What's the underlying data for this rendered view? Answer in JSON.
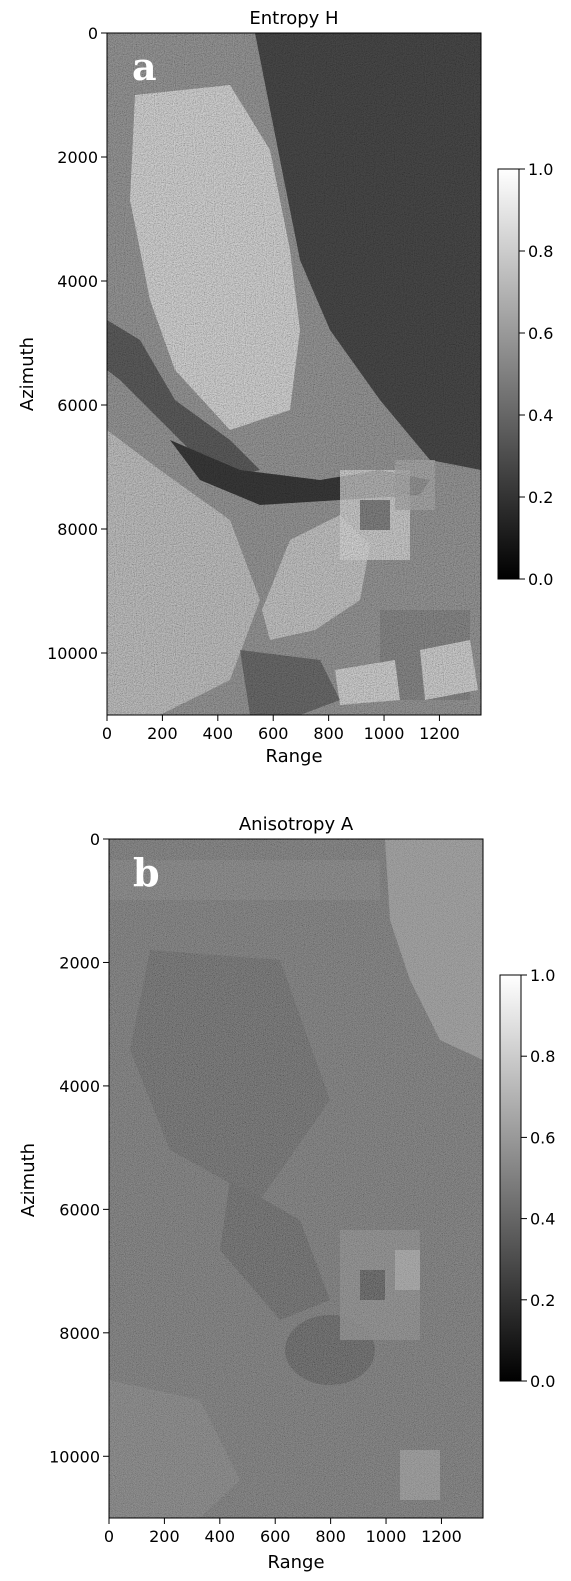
{
  "chart_data": [
    {
      "type": "heatmap",
      "panel_label": "a",
      "title": "Entropy  H",
      "xlabel": "Range",
      "ylabel": "Azimuth",
      "xlim": [
        0,
        1350
      ],
      "ylim": [
        11000,
        0
      ],
      "x_ticks": [
        0,
        200,
        400,
        600,
        800,
        1000,
        1200
      ],
      "x_tick_labels": [
        "0",
        "200",
        "400",
        "600",
        "800",
        "1000",
        "1200"
      ],
      "y_ticks": [
        0,
        2000,
        4000,
        6000,
        8000,
        10000
      ],
      "y_tick_labels": [
        "0",
        "2000",
        "4000",
        "6000",
        "8000",
        "10000"
      ],
      "colormap": "gray",
      "colorbar": {
        "range": [
          0.0,
          1.0
        ],
        "ticks": [
          0.0,
          0.2,
          0.4,
          0.6,
          0.8,
          1.0
        ],
        "tick_labels": [
          "0.0",
          "0.2",
          "0.4",
          "0.6",
          "0.8",
          "1.0"
        ]
      },
      "colors": {
        "low": "#000000",
        "high": "#ffffff"
      }
    },
    {
      "type": "heatmap",
      "panel_label": "b",
      "title": "Anisotropy  A",
      "xlabel": "Range",
      "ylabel": "Azimuth",
      "xlim": [
        0,
        1350
      ],
      "ylim": [
        11000,
        0
      ],
      "x_ticks": [
        0,
        200,
        400,
        600,
        800,
        1000,
        1200
      ],
      "x_tick_labels": [
        "0",
        "200",
        "400",
        "600",
        "800",
        "1000",
        "1200"
      ],
      "y_ticks": [
        0,
        2000,
        4000,
        6000,
        8000,
        10000
      ],
      "y_tick_labels": [
        "0",
        "2000",
        "4000",
        "6000",
        "8000",
        "10000"
      ],
      "colormap": "gray",
      "colorbar": {
        "range": [
          0.0,
          1.0
        ],
        "ticks": [
          0.0,
          0.2,
          0.4,
          0.6,
          0.8,
          1.0
        ],
        "tick_labels": [
          "0.0",
          "0.2",
          "0.4",
          "0.6",
          "0.8",
          "1.0"
        ]
      },
      "colors": {
        "low": "#000000",
        "high": "#ffffff"
      }
    }
  ]
}
